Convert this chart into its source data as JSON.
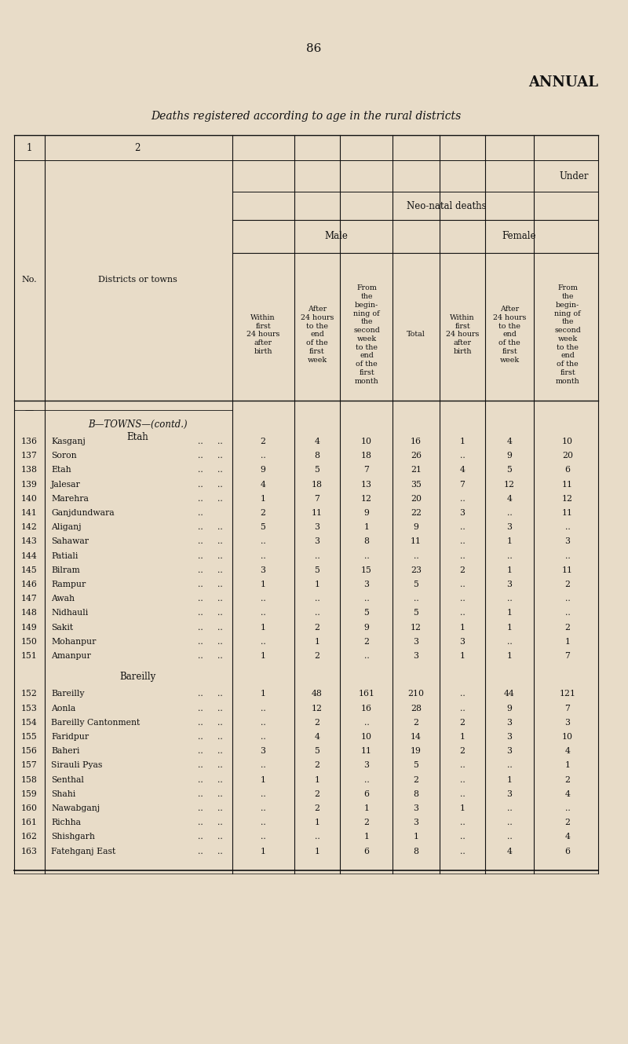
{
  "page_number": "86",
  "title_right": "ANNUAL",
  "subtitle": "Deaths registered according to age in the rural districts",
  "bg_color": "#e8dcc8",
  "section1_header": "B—TOWNS—(contd.)",
  "section1_sub": "Etah",
  "section2_header": "Bareilly",
  "rows_etah": [
    {
      "no": "136",
      "name": "Kasganj",
      "d1": "..",
      "d2": "..",
      "m1": "2",
      "m2": "4",
      "m3": "10",
      "total": "16",
      "f1": "1",
      "f2": "4",
      "f3": "10"
    },
    {
      "no": "137",
      "name": "Soron",
      "d1": "..",
      "d2": "..",
      "m1": "..",
      "m2": "8",
      "m3": "18",
      "total": "26",
      "f1": "..",
      "f2": "9",
      "f3": "20"
    },
    {
      "no": "138",
      "name": "Etah",
      "d1": "..",
      "d2": "..",
      "m1": "9",
      "m2": "5",
      "m3": "7",
      "total": "21",
      "f1": "4",
      "f2": "5",
      "f3": "6"
    },
    {
      "no": "139",
      "name": "Jalesar",
      "d1": "..",
      "d2": "..",
      "m1": "4",
      "m2": "18",
      "m3": "13",
      "total": "35",
      "f1": "7",
      "f2": "12",
      "f3": "11"
    },
    {
      "no": "140",
      "name": "Marehra",
      "d1": "..",
      "d2": "..",
      "m1": "1",
      "m2": "7",
      "m3": "12",
      "total": "20",
      "f1": "..",
      "f2": "4",
      "f3": "12"
    },
    {
      "no": "141",
      "name": "Ganjdundwara",
      "d1": "..",
      "d2": "",
      "m1": "2",
      "m2": "11",
      "m3": "9",
      "total": "22",
      "f1": "3",
      "f2": "..",
      "f3": "11"
    },
    {
      "no": "142",
      "name": "Aliganj",
      "d1": "..",
      "d2": "..",
      "m1": "5",
      "m2": "3",
      "m3": "1",
      "total": "9",
      "f1": "..",
      "f2": "3",
      "f3": ".."
    },
    {
      "no": "143",
      "name": "Sahawar",
      "d1": "..",
      "d2": "..",
      "m1": "..",
      "m2": "3",
      "m3": "8",
      "total": "11",
      "f1": "..",
      "f2": "1",
      "f3": "3"
    },
    {
      "no": "144",
      "name": "Patiali",
      "d1": "..",
      "d2": "..",
      "m1": "..",
      "m2": "..",
      "m3": "..",
      "total": "..",
      "f1": "..",
      "f2": "..",
      "f3": ".."
    },
    {
      "no": "145",
      "name": "Bilram",
      "d1": "..",
      "d2": "..",
      "m1": "3",
      "m2": "5",
      "m3": "15",
      "total": "23",
      "f1": "2",
      "f2": "1",
      "f3": "11"
    },
    {
      "no": "146",
      "name": "Rampur",
      "d1": "..",
      "d2": "..",
      "m1": "1",
      "m2": "1",
      "m3": "3",
      "total": "5",
      "f1": "..",
      "f2": "3",
      "f3": "2"
    },
    {
      "no": "147",
      "name": "Awah",
      "d1": "..",
      "d2": "..",
      "m1": "..",
      "m2": "..",
      "m3": "..",
      "total": "..",
      "f1": "..",
      "f2": "..",
      "f3": ".."
    },
    {
      "no": "148",
      "name": "Nidhauli",
      "d1": "..",
      "d2": "..",
      "m1": "..",
      "m2": "..",
      "m3": "5",
      "total": "5",
      "f1": "..",
      "f2": "1",
      "f3": ".."
    },
    {
      "no": "149",
      "name": "Sakit",
      "d1": "..",
      "d2": "..",
      "m1": "1",
      "m2": "2",
      "m3": "9",
      "total": "12",
      "f1": "1",
      "f2": "1",
      "f3": "2"
    },
    {
      "no": "150",
      "name": "Mohanpur",
      "d1": "..",
      "d2": "..",
      "m1": "..",
      "m2": "1",
      "m3": "2",
      "total": "3",
      "f1": "3",
      "f2": "..",
      "f3": "1"
    },
    {
      "no": "151",
      "name": "Amanpur",
      "d1": "..",
      "d2": "..",
      "m1": "1",
      "m2": "2",
      "m3": "..",
      "total": "3",
      "f1": "1",
      "f2": "1",
      "f3": "7"
    }
  ],
  "rows_bareilly": [
    {
      "no": "152",
      "name": "Bareilly",
      "d1": "..",
      "d2": "..",
      "m1": "1",
      "m2": "48",
      "m3": "161",
      "total": "210",
      "f1": "..",
      "f2": "44",
      "f3": "121"
    },
    {
      "no": "153",
      "name": "Aonla",
      "d1": "..",
      "d2": "..",
      "m1": "..",
      "m2": "12",
      "m3": "16",
      "total": "28",
      "f1": "..",
      "f2": "9",
      "f3": "7"
    },
    {
      "no": "154",
      "name": "Bareilly Cantonment",
      "d1": "..",
      "d2": "..",
      "m1": "..",
      "m2": "2",
      "m3": "..",
      "total": "2",
      "f1": "2",
      "f2": "3",
      "f3": "3"
    },
    {
      "no": "155",
      "name": "Faridpur",
      "d1": "..",
      "d2": "..",
      "m1": "..",
      "m2": "4",
      "m3": "10",
      "total": "14",
      "f1": "1",
      "f2": "3",
      "f3": "10"
    },
    {
      "no": "156",
      "name": "Baheri",
      "d1": "..",
      "d2": "..",
      "m1": "3",
      "m2": "5",
      "m3": "11",
      "total": "19",
      "f1": "2",
      "f2": "3",
      "f3": "4"
    },
    {
      "no": "157",
      "name": "Sirauli Pyas",
      "d1": "..",
      "d2": "..",
      "m1": "..",
      "m2": "2",
      "m3": "3",
      "total": "5",
      "f1": "..",
      "f2": "..",
      "f3": "1"
    },
    {
      "no": "158",
      "name": "Senthal",
      "d1": "..",
      "d2": "..",
      "m1": "1",
      "m2": "1",
      "m3": "..",
      "total": "2",
      "f1": "..",
      "f2": "1",
      "f3": "2"
    },
    {
      "no": "159",
      "name": "Shahi",
      "d1": "..",
      "d2": "..",
      "m1": "..",
      "m2": "2",
      "m3": "6",
      "total": "8",
      "f1": "..",
      "f2": "3",
      "f3": "4"
    },
    {
      "no": "160",
      "name": "Nawabganj",
      "d1": "..",
      "d2": "..",
      "m1": "..",
      "m2": "2",
      "m3": "1",
      "total": "3",
      "f1": "1",
      "f2": "..",
      "f3": ".."
    },
    {
      "no": "161",
      "name": "Richha",
      "d1": "..",
      "d2": "..",
      "m1": "..",
      "m2": "1",
      "m3": "2",
      "total": "3",
      "f1": "..",
      "f2": "..",
      "f3": "2"
    },
    {
      "no": "162",
      "name": "Shishgarh",
      "d1": "..",
      "d2": "..",
      "m1": "..",
      "m2": "..",
      "m3": "1",
      "total": "1",
      "f1": "..",
      "f2": "..",
      "f3": "4"
    },
    {
      "no": "163",
      "name": "Fatehganj East",
      "d1": "..",
      "d2": "..",
      "m1": "1",
      "m2": "1",
      "m3": "6",
      "total": "8",
      "f1": "..",
      "f2": "4",
      "f3": "6"
    }
  ]
}
